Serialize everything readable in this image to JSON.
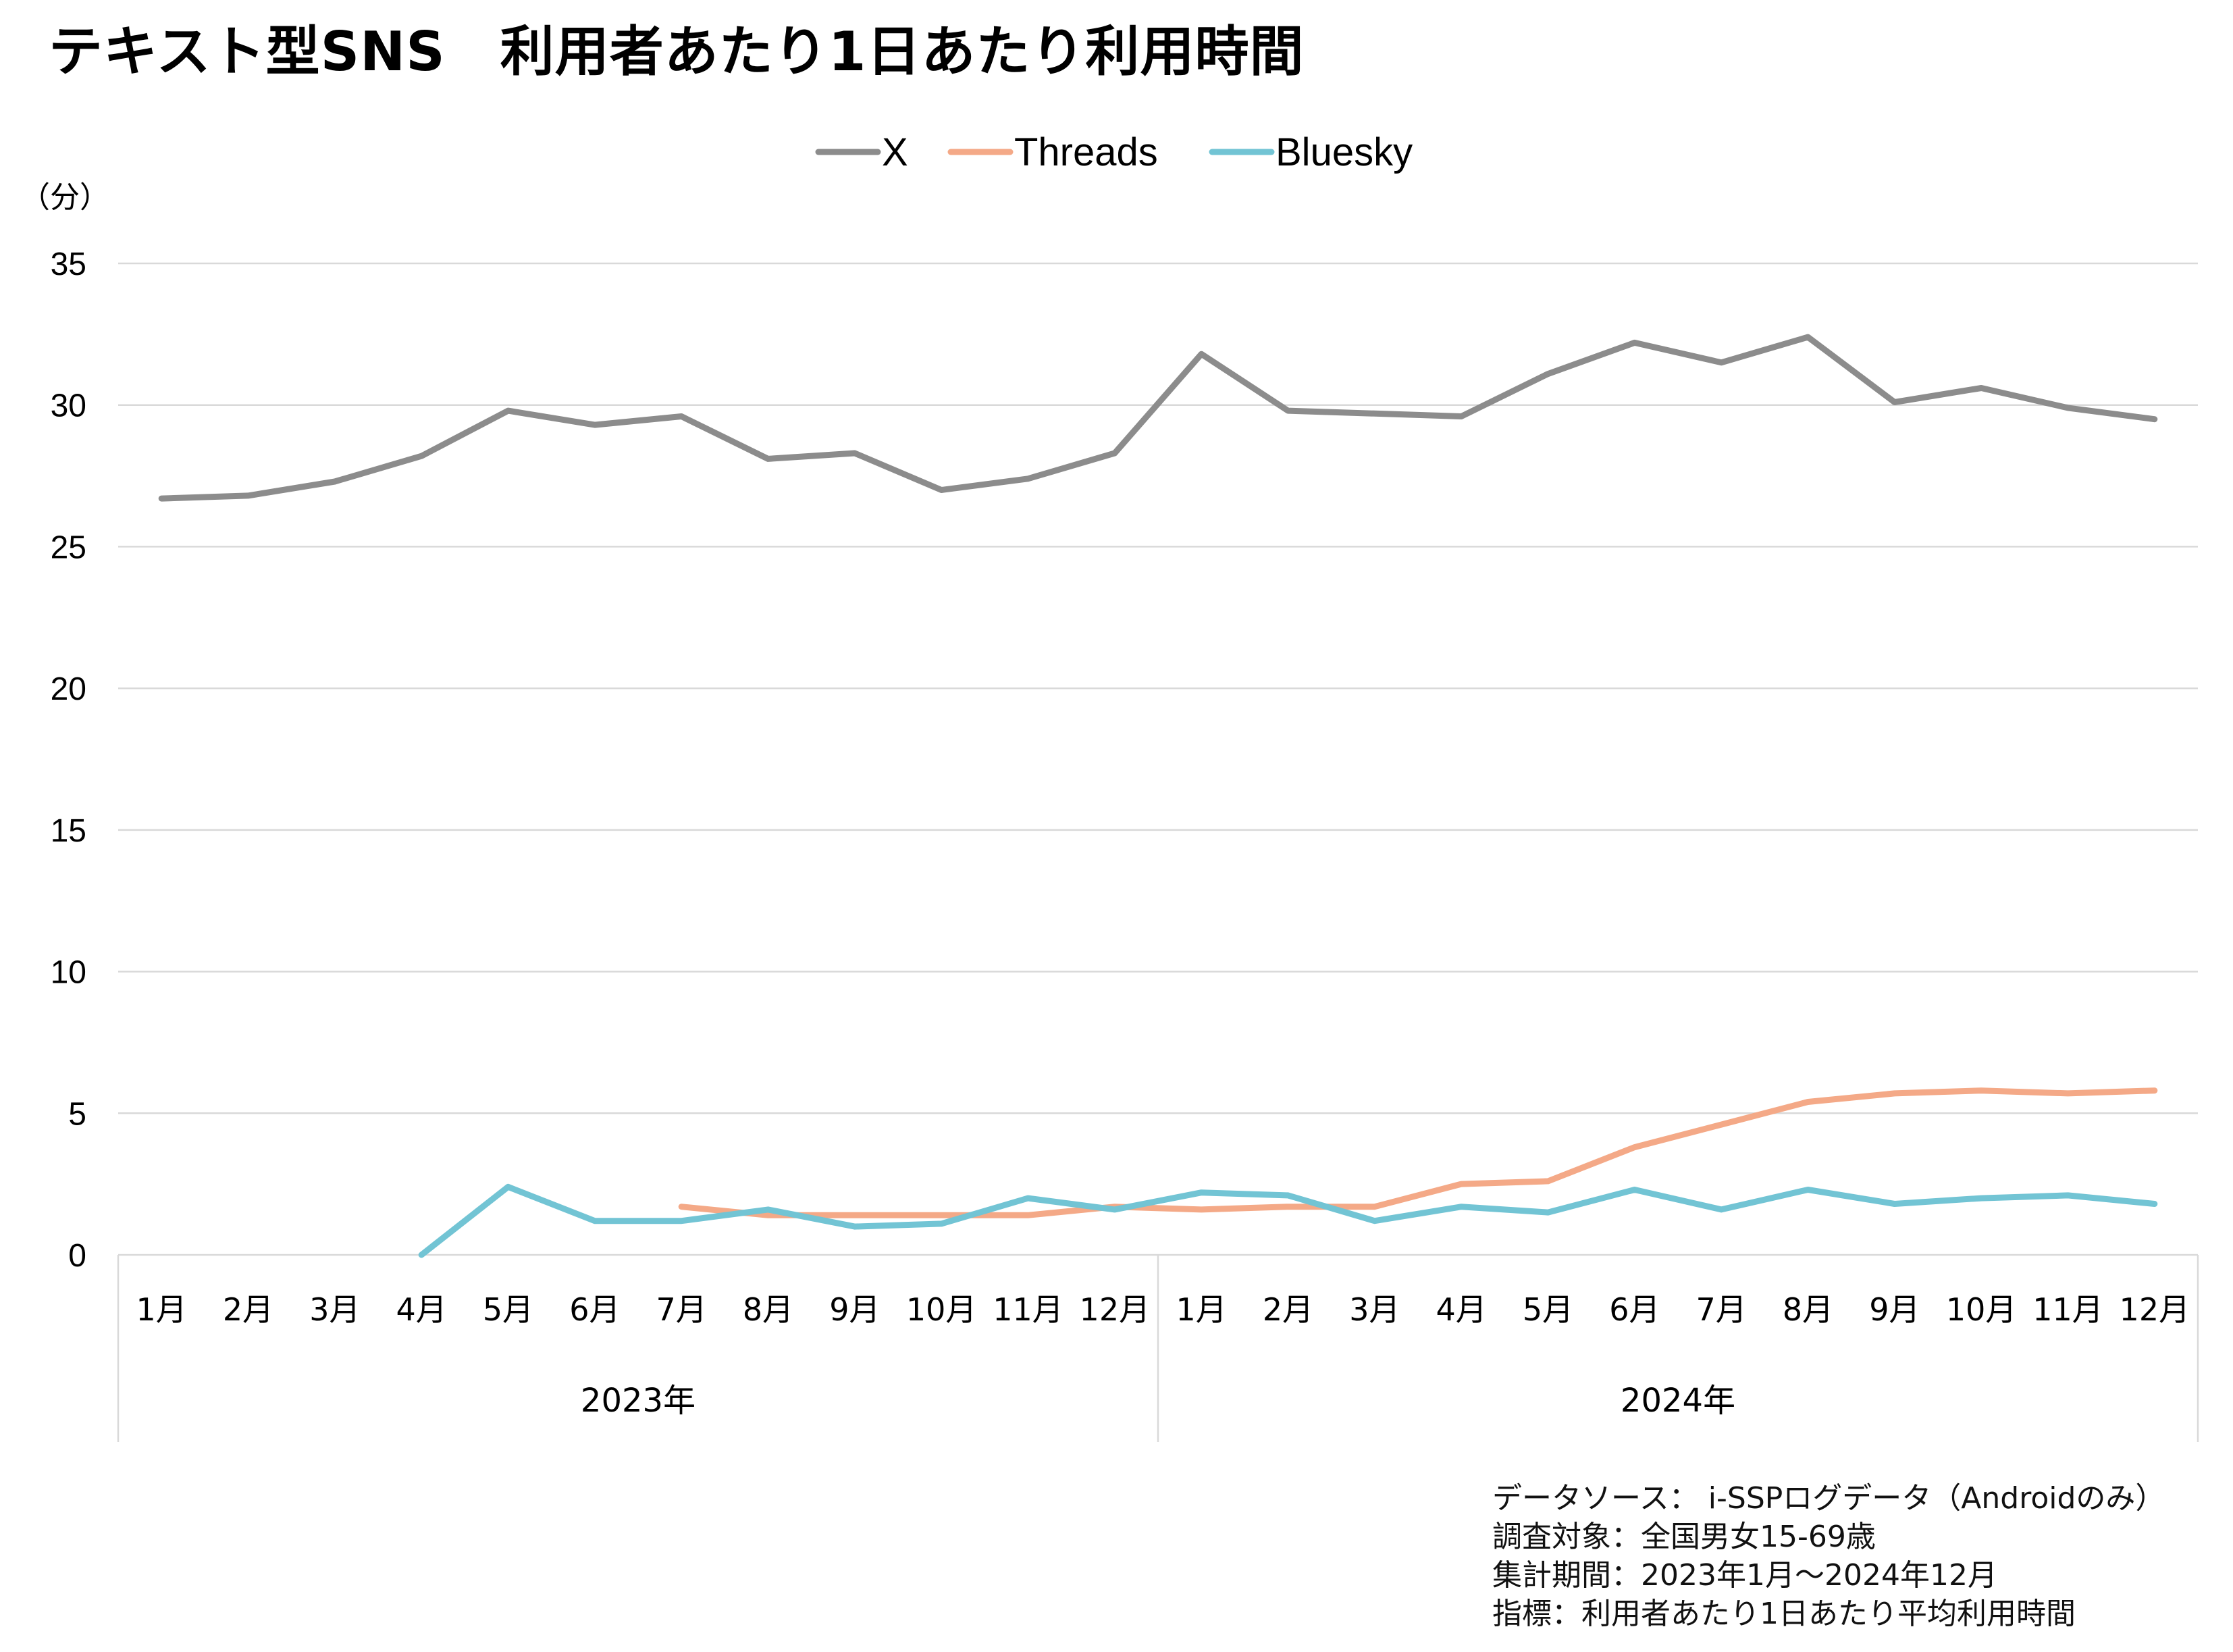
{
  "title": "テキスト型SNS　利用者あたり1日あたり利用時間",
  "colors": {
    "X": "#8c8c8c",
    "Threads": "#f4a987",
    "Bluesky": "#72c4d4",
    "grid": "#d9d9d9"
  },
  "chart_data": {
    "type": "line",
    "title": "テキスト型SNS　利用者あたり1日あたり利用時間",
    "ylabel": "（分）",
    "xlabel": "",
    "ylim": [
      0,
      35
    ],
    "yticks": [
      "0",
      "5",
      "10",
      "15",
      "20",
      "25",
      "30",
      "35"
    ],
    "grid": true,
    "legend": "top-center",
    "categories": [
      "1月",
      "2月",
      "3月",
      "4月",
      "5月",
      "6月",
      "7月",
      "8月",
      "9月",
      "10月",
      "11月",
      "12月",
      "1月",
      "2月",
      "3月",
      "4月",
      "5月",
      "6月",
      "7月",
      "8月",
      "9月",
      "10月",
      "11月",
      "12月"
    ],
    "groups": [
      {
        "label": "2023年",
        "start": 0,
        "end": 11
      },
      {
        "label": "2024年",
        "start": 12,
        "end": 23
      }
    ],
    "series": [
      {
        "name": "X",
        "values": [
          26.7,
          26.8,
          27.3,
          28.2,
          29.8,
          29.3,
          29.6,
          28.1,
          28.3,
          27.0,
          27.4,
          28.3,
          31.8,
          29.8,
          29.7,
          29.6,
          31.1,
          32.2,
          31.5,
          32.4,
          30.1,
          30.6,
          29.9,
          29.5
        ]
      },
      {
        "name": "Threads",
        "values": [
          null,
          null,
          null,
          null,
          null,
          null,
          1.7,
          1.4,
          1.4,
          1.4,
          1.4,
          1.7,
          1.6,
          1.7,
          1.7,
          2.5,
          2.6,
          3.8,
          4.6,
          5.4,
          5.7,
          5.8,
          5.7,
          5.8
        ]
      },
      {
        "name": "Bluesky",
        "values": [
          null,
          null,
          null,
          0.0,
          2.4,
          1.2,
          1.2,
          1.6,
          1.0,
          1.1,
          2.0,
          1.6,
          2.2,
          2.1,
          1.2,
          1.7,
          1.5,
          2.3,
          1.6,
          2.3,
          1.8,
          2.0,
          2.1,
          1.8
        ]
      }
    ]
  },
  "source": {
    "line1": "データソース： i-SSPログデータ（Androidのみ）",
    "line2": "調査対象：全国男女15-69歳",
    "line3": "集計期間：2023年1月～2024年12月",
    "line4": "指標：利用者あたり1日あたり平均利用時間"
  }
}
